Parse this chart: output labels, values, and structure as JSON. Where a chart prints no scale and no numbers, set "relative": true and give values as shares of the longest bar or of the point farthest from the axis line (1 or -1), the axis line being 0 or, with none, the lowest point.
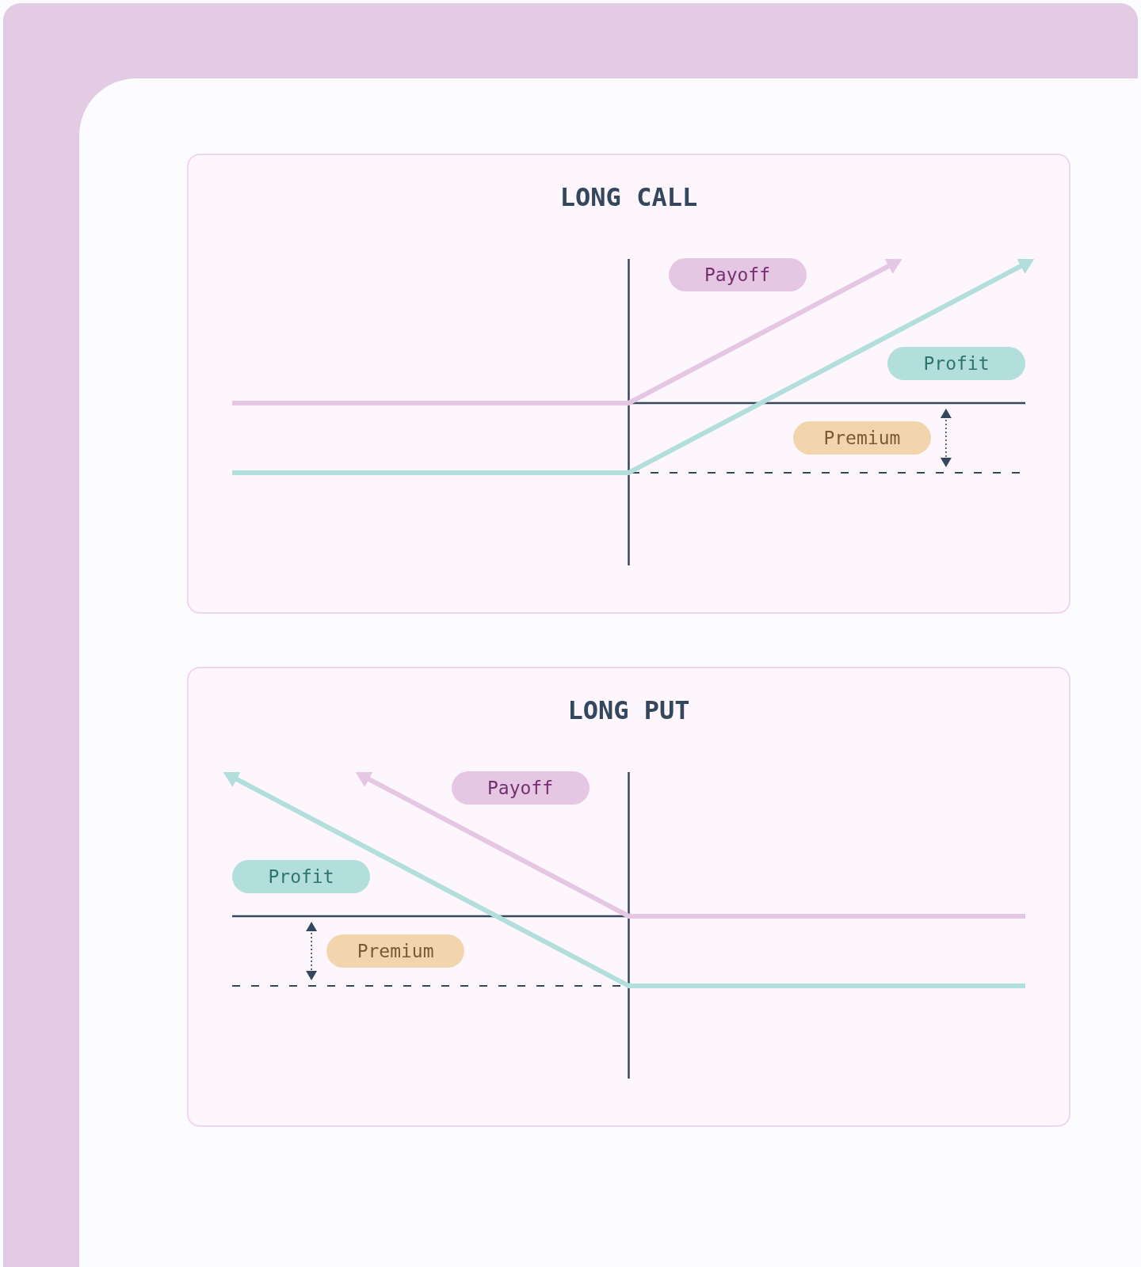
{
  "chart_data": [
    {
      "type": "line",
      "title": "LONG CALL",
      "relative": true,
      "categories": [
        null,
        null,
        null,
        null,
        null,
        null,
        null
      ],
      "series": [
        {
          "name": "Payoff",
          "color": "#e5c7e3",
          "values": [
            0,
            0,
            0,
            0,
            0.5,
            1,
            null
          ]
        },
        {
          "name": "Profit",
          "color": "#b2dedb",
          "values": [
            -0.5,
            -0.5,
            -0.5,
            -0.5,
            0,
            0.5,
            1
          ]
        }
      ],
      "ref_lines": [
        {
          "axis": "y",
          "value": -0.5,
          "label": "Premium",
          "color": "#34475c",
          "line_style": "dashed"
        }
      ],
      "legend": false,
      "grid": false,
      "tick_labels": false
    },
    {
      "type": "line",
      "title": "LONG PUT",
      "relative": true,
      "categories": [
        null,
        null,
        null,
        null,
        null,
        null,
        null
      ],
      "series": [
        {
          "name": "Payoff",
          "color": "#e5c7e3",
          "values": [
            null,
            1,
            0.5,
            0,
            0,
            0,
            0
          ]
        },
        {
          "name": "Profit",
          "color": "#b2dedb",
          "values": [
            1,
            0.5,
            0,
            -0.5,
            -0.5,
            -0.5,
            -0.5
          ]
        }
      ],
      "ref_lines": [
        {
          "axis": "y",
          "value": -0.5,
          "label": "Premium",
          "color": "#34475c",
          "line_style": "dashed"
        }
      ],
      "legend": false,
      "grid": false,
      "tick_labels": false
    }
  ]
}
